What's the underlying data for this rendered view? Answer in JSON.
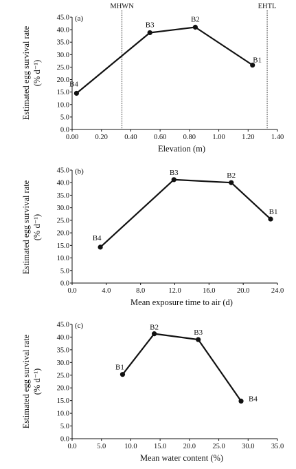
{
  "chart_data": [
    {
      "type": "line",
      "panel_label": "(a)",
      "xlabel": "Elevation (m)",
      "ylabel_line1": "Estimated egg survival rate",
      "ylabel_line2": "(% d⁻¹)",
      "xlim": [
        0.0,
        1.4
      ],
      "ylim": [
        0.0,
        45.0
      ],
      "xticks": [
        "0.00",
        "0.20",
        "0.40",
        "0.60",
        "0.80",
        "1.00",
        "1.20",
        "1.40"
      ],
      "yticks": [
        "0.0",
        "5.0",
        "10.0",
        "15.0",
        "20.0",
        "25.0",
        "30.0",
        "35.0",
        "40.0",
        "45.0"
      ],
      "points": [
        {
          "label": "B4",
          "x": 0.03,
          "y": 14.5
        },
        {
          "label": "B3",
          "x": 0.53,
          "y": 38.8
        },
        {
          "label": "B2",
          "x": 0.84,
          "y": 41.0
        },
        {
          "label": "B1",
          "x": 1.23,
          "y": 25.8
        }
      ],
      "reference_lines": [
        {
          "label": "MHWN",
          "x": 0.34
        },
        {
          "label": "EHTL",
          "x": 1.33
        }
      ],
      "grid": false
    },
    {
      "type": "line",
      "panel_label": "(b)",
      "xlabel": "Mean exposure time to air (d)",
      "ylabel_line1": "Estimated egg survival rate",
      "ylabel_line2": "(% d⁻¹)",
      "xlim": [
        0.0,
        24.0
      ],
      "ylim": [
        0.0,
        45.0
      ],
      "xticks": [
        "0.0",
        "4.0",
        "8.0",
        "12.0",
        "16.0",
        "20.0",
        "24.0"
      ],
      "yticks": [
        "0.0",
        "5.0",
        "10.0",
        "15.0",
        "20.0",
        "25.0",
        "30.0",
        "35.0",
        "40.0",
        "45.0"
      ],
      "points": [
        {
          "label": "B4",
          "x": 3.3,
          "y": 14.3
        },
        {
          "label": "B3",
          "x": 11.9,
          "y": 41.2
        },
        {
          "label": "B2",
          "x": 18.6,
          "y": 40.0
        },
        {
          "label": "B1",
          "x": 23.2,
          "y": 25.5
        }
      ],
      "reference_lines": [],
      "grid": false
    },
    {
      "type": "line",
      "panel_label": "(c)",
      "xlabel": "Mean water content (%)",
      "ylabel_line1": "Estimated egg survival rate",
      "ylabel_line2": "(% d⁻¹)",
      "xlim": [
        0.0,
        35.0
      ],
      "ylim": [
        0.0,
        45.0
      ],
      "xticks": [
        "0.0",
        "5.0",
        "10.0",
        "15.0",
        "20.0",
        "25.0",
        "30.0",
        "35.0"
      ],
      "yticks": [
        "0.0",
        "5.0",
        "10.0",
        "15.0",
        "20.0",
        "25.0",
        "30.0",
        "35.0",
        "40.0",
        "45.0"
      ],
      "points": [
        {
          "label": "B1",
          "x": 8.6,
          "y": 25.3
        },
        {
          "label": "B2",
          "x": 14.0,
          "y": 41.3
        },
        {
          "label": "B3",
          "x": 21.5,
          "y": 39.0
        },
        {
          "label": "B4",
          "x": 28.8,
          "y": 14.8
        }
      ],
      "reference_lines": [],
      "grid": false
    }
  ]
}
